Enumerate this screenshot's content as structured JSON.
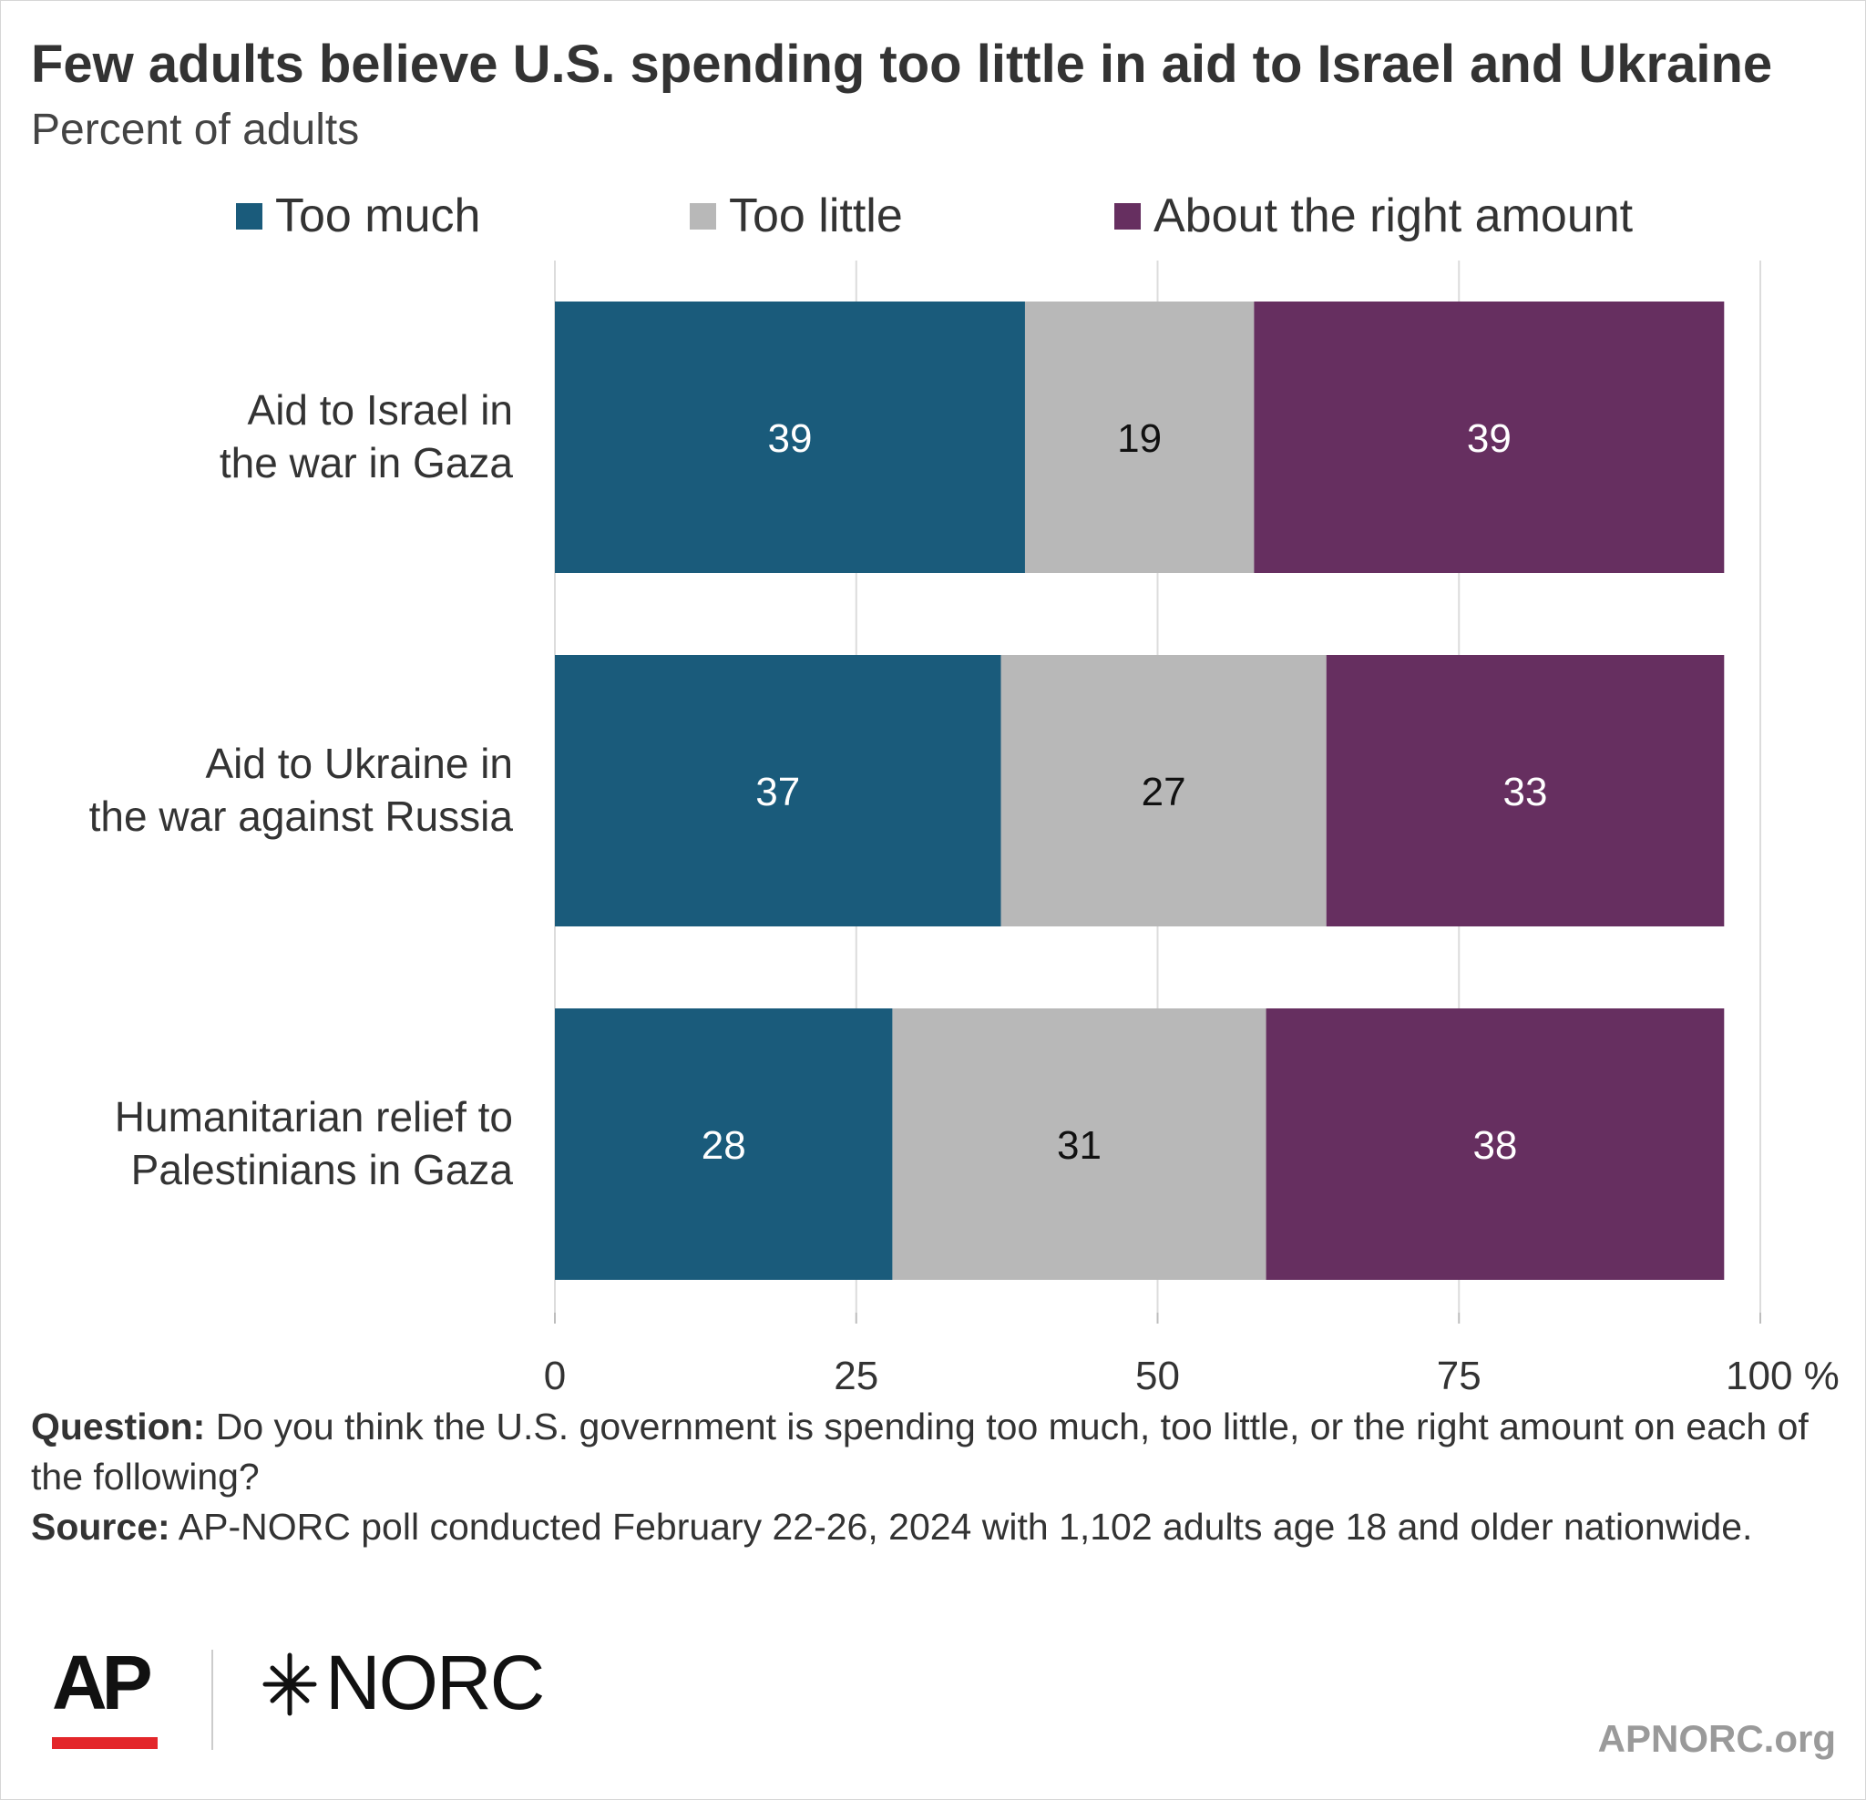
{
  "title": "Few adults believe U.S. spending too little in aid to Israel and Ukraine",
  "subtitle": "Percent of adults",
  "chart_data": {
    "type": "bar",
    "orientation": "horizontal",
    "stacked": true,
    "categories": [
      [
        "Aid to Israel in",
        "the war in Gaza"
      ],
      [
        "Aid to Ukraine in",
        "the war against Russia"
      ],
      [
        "Humanitarian relief to",
        "Palestinians in Gaza"
      ]
    ],
    "series": [
      {
        "name": "Too much",
        "values": [
          39,
          37,
          28
        ],
        "color": "#1a5b7b",
        "label_color": "#ffffff"
      },
      {
        "name": "Too little",
        "values": [
          19,
          27,
          31
        ],
        "color": "#b8b8b8",
        "label_color": "#111111"
      },
      {
        "name": "About the right amount",
        "values": [
          39,
          33,
          38
        ],
        "color": "#662f60",
        "label_color": "#ffffff"
      }
    ],
    "xlim": [
      0,
      100
    ],
    "xticks": [
      0,
      25,
      50,
      75,
      100
    ],
    "xtick_labels": [
      "0",
      "25",
      "50",
      "75",
      "100 %"
    ],
    "grid": true,
    "legend": "top"
  },
  "footnotes": {
    "question_label": "Question:",
    "question_text": " Do you think the U.S. government is spending too much, too little, or the right amount on each of the following?",
    "source_label": "Source:",
    "source_text": " AP-NORC poll conducted February 22-26, 2024 with 1,102 adults age 18 and older nationwide."
  },
  "logos": {
    "ap": "AP",
    "norc": "NORC"
  },
  "site_url": "APNORC.org"
}
